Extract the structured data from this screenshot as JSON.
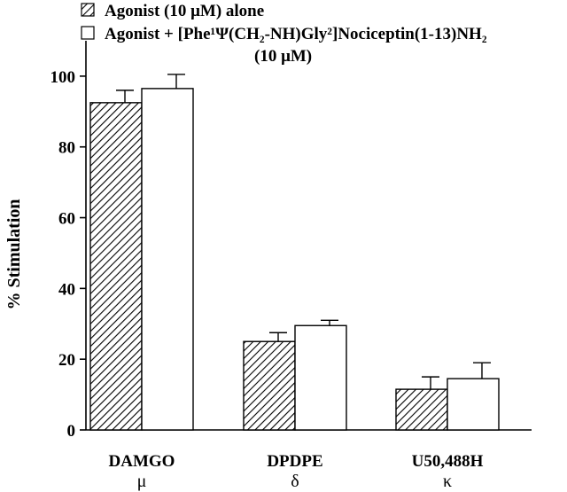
{
  "chart_data": {
    "type": "bar",
    "ylabel": "% Stimulation",
    "ylim": [
      0,
      110
    ],
    "yticks": [
      0,
      20,
      40,
      60,
      80,
      100
    ],
    "categories": [
      "DAMGO",
      "DPDPE",
      "U50,488H"
    ],
    "category_symbols": [
      "μ",
      "δ",
      "κ"
    ],
    "legend_position": "top",
    "series": [
      {
        "name": "Agonist (10 μM) alone",
        "fill": "hatched",
        "values": [
          92.5,
          25,
          11.5
        ],
        "errors": [
          3.5,
          2.5,
          3.5
        ]
      },
      {
        "name": "Agonist + [Phe¹Ψ(CH₂-NH)Gly²]Nociceptin(1-13)NH₂ (10 μM)",
        "name_line1": "Agonist + [Phe¹Ψ(CH₂-NH)Gly²]Nociceptin(1-13)NH₂",
        "name_line2": "(10 μM)",
        "fill": "open",
        "values": [
          96.5,
          29.5,
          14.5
        ],
        "errors": [
          4,
          1.5,
          4.5
        ]
      }
    ],
    "colors": {
      "bar_outline": "#000000",
      "open_fill": "#ffffff",
      "hatch": "#000000"
    }
  }
}
